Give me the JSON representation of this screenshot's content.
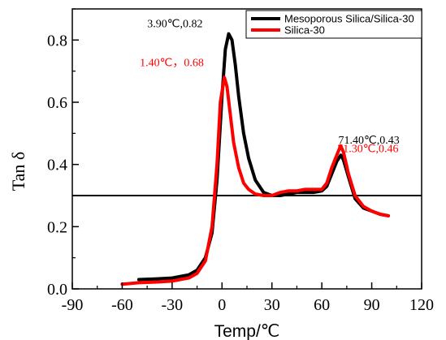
{
  "chart_data": {
    "type": "line",
    "title": "",
    "xlabel": "Temp/℃",
    "ylabel": "Tan δ",
    "xlim": [
      -90,
      120
    ],
    "ylim": [
      0.0,
      0.9
    ],
    "xticks": [
      -90,
      -60,
      -30,
      0,
      30,
      60,
      90,
      120
    ],
    "xtick_labels": [
      "-90",
      "-60",
      "-30",
      "0",
      "30",
      "60",
      "90",
      "120"
    ],
    "yticks": [
      0.0,
      0.2,
      0.4,
      0.6,
      0.8
    ],
    "ytick_labels": [
      "0.0",
      "0.2",
      "0.4",
      "0.6",
      "0.8"
    ],
    "grid": false,
    "legend_position": "top-right",
    "reference_line": {
      "y": 0.3,
      "color": "#000000"
    },
    "series": [
      {
        "name": "Mesoporous Silica/Silica-30",
        "color": "#000000",
        "x": [
          -50,
          -40,
          -30,
          -20,
          -15,
          -10,
          -6,
          -3,
          0,
          2,
          4,
          6,
          8,
          10,
          13,
          16,
          20,
          25,
          30,
          35,
          40,
          45,
          50,
          55,
          60,
          63,
          66,
          69,
          71.4,
          73,
          76,
          80,
          85,
          90,
          95,
          100
        ],
        "y": [
          0.03,
          0.032,
          0.035,
          0.045,
          0.06,
          0.1,
          0.18,
          0.35,
          0.62,
          0.77,
          0.82,
          0.8,
          0.72,
          0.62,
          0.5,
          0.42,
          0.35,
          0.31,
          0.3,
          0.3,
          0.305,
          0.31,
          0.31,
          0.31,
          0.315,
          0.33,
          0.37,
          0.41,
          0.43,
          0.415,
          0.36,
          0.29,
          0.26,
          0.25,
          0.24,
          0.235
        ]
      },
      {
        "name": "Silica-30",
        "color": "#ff0000",
        "x": [
          -60,
          -50,
          -40,
          -30,
          -20,
          -15,
          -10,
          -6,
          -3,
          -1,
          1.4,
          3,
          5,
          7,
          10,
          13,
          16,
          20,
          25,
          30,
          35,
          40,
          45,
          50,
          55,
          60,
          63,
          66,
          69,
          71.3,
          73,
          76,
          80,
          85,
          90,
          95,
          100
        ],
        "y": [
          0.015,
          0.02,
          0.022,
          0.025,
          0.035,
          0.05,
          0.09,
          0.2,
          0.4,
          0.6,
          0.68,
          0.65,
          0.56,
          0.47,
          0.39,
          0.34,
          0.32,
          0.305,
          0.3,
          0.3,
          0.31,
          0.315,
          0.315,
          0.32,
          0.32,
          0.32,
          0.34,
          0.39,
          0.43,
          0.46,
          0.44,
          0.37,
          0.3,
          0.265,
          0.25,
          0.24,
          0.235
        ]
      }
    ],
    "annotations": [
      {
        "text": "3.90℃,0.82",
        "x": 3.9,
        "y": 0.82,
        "color": "#000000"
      },
      {
        "text": "1.40℃，0.68",
        "x": 1.4,
        "y": 0.68,
        "color": "#ff0000"
      },
      {
        "text": "71.40℃,0.43",
        "x": 71.4,
        "y": 0.43,
        "color": "#000000"
      },
      {
        "text": "71.30℃,0.46",
        "x": 71.3,
        "y": 0.46,
        "color": "#ff0000"
      }
    ]
  }
}
